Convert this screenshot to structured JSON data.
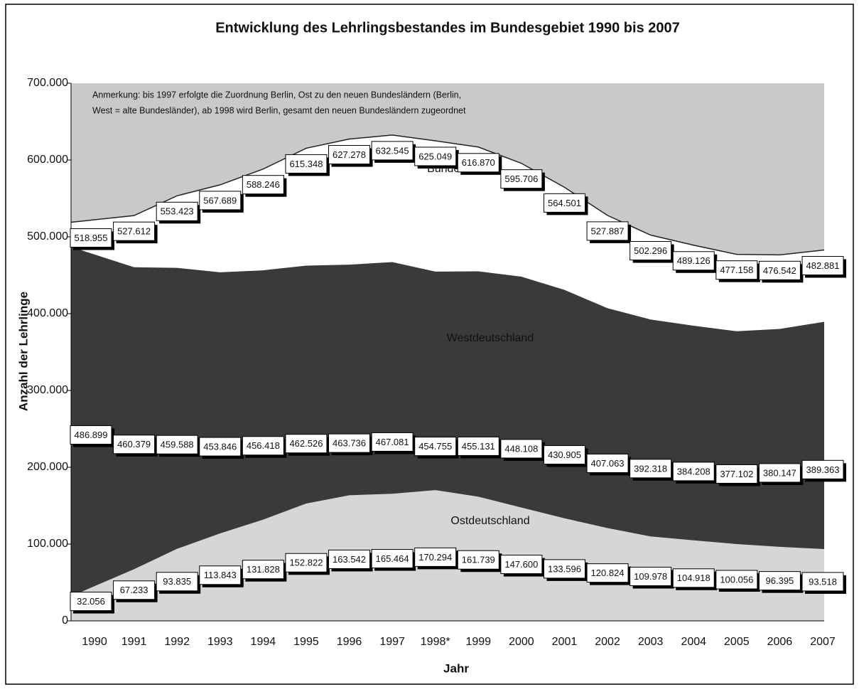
{
  "chart_data": {
    "type": "area",
    "title": "Entwicklung des Lehrlingsbestandes im Bundesgebiet 1990 bis 2007",
    "annotation": [
      "Anmerkung: bis 1997 erfolgte die Zuordnung Berlin, Ost zu den neuen Bundesländern (Berlin,",
      "West = alte Bundesländer), ab 1998 wird Berlin, gesamt den neuen Bundesländern zugeordnet"
    ],
    "xlabel": "Jahr",
    "ylabel": "Anzahl der Lehrlinge",
    "categories": [
      "1990",
      "1991",
      "1992",
      "1993",
      "1994",
      "1995",
      "1996",
      "1997",
      "1998*",
      "1999",
      "2000",
      "2001",
      "2002",
      "2003",
      "2004",
      "2005",
      "2006",
      "2007"
    ],
    "ylim": [
      0,
      700000
    ],
    "yticks": [
      0,
      {
        "value": 100000,
        "label": "100.000"
      },
      {
        "value": 200000,
        "label": "200.000"
      },
      {
        "value": 300000,
        "label": "300.000"
      },
      {
        "value": 400000,
        "label": "400.000"
      },
      {
        "value": 500000,
        "label": "500.000"
      },
      {
        "value": 600000,
        "label": "600.000"
      },
      {
        "value": 700000,
        "label": "700.000"
      }
    ],
    "series": [
      {
        "name": "Bundesgebiet",
        "color": "#ffffff",
        "values": [
          518955,
          527612,
          553423,
          567689,
          588246,
          615348,
          627278,
          632545,
          625049,
          616870,
          595706,
          564501,
          527887,
          502296,
          489126,
          477158,
          476542,
          482881
        ],
        "value_labels": [
          "518.955",
          "527.612",
          "553.423",
          "567.689",
          "588.246",
          "615.348",
          "627.278",
          "632.545",
          "625.049",
          "616.870",
          "595.706",
          "564.501",
          "527.887",
          "502.296",
          "489.126",
          "477.158",
          "476.542",
          "482.881"
        ]
      },
      {
        "name": "Westdeutschland",
        "color": "#3a3a3a",
        "values": [
          486899,
          460379,
          459588,
          453846,
          456418,
          462526,
          463736,
          467081,
          454755,
          455131,
          448108,
          430905,
          407063,
          392318,
          384208,
          377102,
          380147,
          389363
        ],
        "value_labels": [
          "486.899",
          "460.379",
          "459.588",
          "453.846",
          "456.418",
          "462.526",
          "463.736",
          "467.081",
          "454.755",
          "455.131",
          "448.108",
          "430.905",
          "407.063",
          "392.318",
          "384.208",
          "377.102",
          "380.147",
          "389.363"
        ]
      },
      {
        "name": "Ostdeutschland",
        "color": "#d6d6d6",
        "values": [
          32056,
          67233,
          93835,
          113843,
          131828,
          152822,
          163542,
          165464,
          170294,
          161739,
          147600,
          133596,
          120824,
          109978,
          104918,
          100056,
          96395,
          93518
        ],
        "value_labels": [
          "32.056",
          "67.233",
          "93.835",
          "113.843",
          "131.828",
          "152.822",
          "163.542",
          "165.464",
          "170.294",
          "161.739",
          "147.600",
          "133.596",
          "120.824",
          "109.978",
          "104.918",
          "100.056",
          "96.395",
          "93.518"
        ]
      }
    ]
  }
}
